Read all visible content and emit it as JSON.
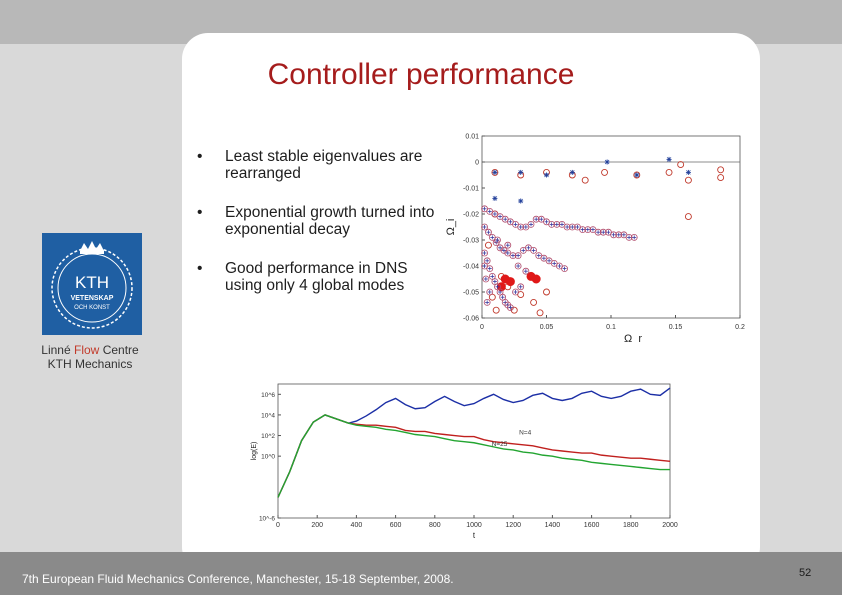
{
  "slide": {
    "title": "Controller performance",
    "bullet_marker": "•",
    "bullets": [
      "Least stable eigenvalues are rearranged",
      "Exponential growth turned into exponential decay",
      "Good performance in DNS using only 4 global modes"
    ],
    "logo": {
      "text_kth": "KTH",
      "text_line1": "VETENSKAP",
      "text_line2": "OCH KONST"
    },
    "caption": {
      "line1_a": "Linné",
      "line1_flow": "Flow",
      "line1_b": "Centre",
      "line2": "KTH Mechanics"
    },
    "footer": "7th European Fluid Mechanics Conference, Manchester, 15-18 September, 2008.",
    "page_number": "52",
    "colors": {
      "title": "#a51c1c",
      "top_bar": "#b8b8b8",
      "side_panel": "#d9d9d9",
      "bottom_bar": "#8a8a8a",
      "logo_bg": "#1f5fa3"
    }
  },
  "chart_data": [
    {
      "type": "scatter",
      "title": "",
      "xlabel": "Ω_r",
      "ylabel": "Ω_i",
      "xlim": [
        0,
        0.2
      ],
      "ylim": [
        -0.06,
        0.01
      ],
      "x_ticks": [
        "0",
        "0.05",
        "0.1",
        "0.15",
        "0.2"
      ],
      "y_ticks": [
        "0.01",
        "0",
        "-0.01",
        "-0.02",
        "-0.03",
        "-0.04",
        "-0.05",
        "-0.06"
      ],
      "series": [
        {
          "marker": "circle",
          "color": "#c0392b",
          "points": [
            [
              0.01,
              -0.004
            ],
            [
              0.03,
              -0.005
            ],
            [
              0.05,
              -0.004
            ],
            [
              0.07,
              -0.005
            ],
            [
              0.095,
              -0.004
            ],
            [
              0.12,
              -0.005
            ],
            [
              0.145,
              -0.004
            ],
            [
              0.16,
              -0.007
            ],
            [
              0.185,
              -0.006
            ],
            [
              0.02,
              -0.048
            ],
            [
              0.03,
              -0.051
            ],
            [
              0.04,
              -0.054
            ],
            [
              0.045,
              -0.058
            ],
            [
              0.05,
              -0.05
            ],
            [
              0.025,
              -0.057
            ],
            [
              0.01,
              -0.02
            ],
            [
              0.005,
              -0.032
            ],
            [
              0.015,
              -0.044
            ],
            [
              0.008,
              -0.052
            ],
            [
              0.154,
              -0.001
            ],
            [
              0.185,
              -0.003
            ],
            [
              0.16,
              -0.021
            ],
            [
              0.08,
              -0.007
            ],
            [
              0.011,
              -0.057
            ]
          ]
        },
        {
          "marker": "cross",
          "color": "#1f3d99",
          "points": [
            [
              0.097,
              0
            ],
            [
              0.145,
              0.001
            ],
            [
              0.01,
              -0.004
            ],
            [
              0.03,
              -0.004
            ],
            [
              0.05,
              -0.005
            ],
            [
              0.07,
              -0.004
            ],
            [
              0.12,
              -0.005
            ],
            [
              0.16,
              -0.004
            ],
            [
              0.01,
              -0.014
            ],
            [
              0.03,
              -0.015
            ]
          ]
        },
        {
          "marker": "circle-filled",
          "color": "#e01818",
          "points": [
            [
              0.018,
              -0.045
            ],
            [
              0.022,
              -0.046
            ],
            [
              0.038,
              -0.044
            ],
            [
              0.042,
              -0.045
            ],
            [
              0.015,
              -0.048
            ]
          ]
        },
        {
          "marker": "circle-cross",
          "color": "#7a5aa8",
          "points": [
            [
              0.002,
              -0.018
            ],
            [
              0.006,
              -0.019
            ],
            [
              0.01,
              -0.02
            ],
            [
              0.014,
              -0.021
            ],
            [
              0.018,
              -0.022
            ],
            [
              0.022,
              -0.023
            ],
            [
              0.026,
              -0.024
            ],
            [
              0.03,
              -0.025
            ],
            [
              0.034,
              -0.025
            ],
            [
              0.038,
              -0.024
            ],
            [
              0.042,
              -0.022
            ],
            [
              0.046,
              -0.022
            ],
            [
              0.05,
              -0.023
            ],
            [
              0.054,
              -0.024
            ],
            [
              0.058,
              -0.024
            ],
            [
              0.062,
              -0.024
            ],
            [
              0.066,
              -0.025
            ],
            [
              0.07,
              -0.025
            ],
            [
              0.074,
              -0.025
            ],
            [
              0.078,
              -0.026
            ],
            [
              0.082,
              -0.026
            ],
            [
              0.086,
              -0.026
            ],
            [
              0.09,
              -0.027
            ],
            [
              0.094,
              -0.027
            ],
            [
              0.098,
              -0.027
            ],
            [
              0.102,
              -0.028
            ],
            [
              0.106,
              -0.028
            ],
            [
              0.11,
              -0.028
            ],
            [
              0.114,
              -0.029
            ],
            [
              0.118,
              -0.029
            ],
            [
              0.002,
              -0.025
            ],
            [
              0.005,
              -0.027
            ],
            [
              0.008,
              -0.029
            ],
            [
              0.011,
              -0.031
            ],
            [
              0.014,
              -0.033
            ],
            [
              0.017,
              -0.034
            ],
            [
              0.02,
              -0.035
            ],
            [
              0.024,
              -0.036
            ],
            [
              0.028,
              -0.036
            ],
            [
              0.032,
              -0.034
            ],
            [
              0.036,
              -0.033
            ],
            [
              0.04,
              -0.034
            ],
            [
              0.044,
              -0.036
            ],
            [
              0.048,
              -0.037
            ],
            [
              0.052,
              -0.038
            ],
            [
              0.056,
              -0.039
            ],
            [
              0.06,
              -0.04
            ],
            [
              0.064,
              -0.041
            ],
            [
              0.002,
              -0.035
            ],
            [
              0.004,
              -0.038
            ],
            [
              0.006,
              -0.041
            ],
            [
              0.008,
              -0.044
            ],
            [
              0.01,
              -0.046
            ],
            [
              0.012,
              -0.048
            ],
            [
              0.014,
              -0.05
            ],
            [
              0.016,
              -0.052
            ],
            [
              0.018,
              -0.054
            ],
            [
              0.02,
              -0.055
            ],
            [
              0.022,
              -0.056
            ],
            [
              0.012,
              -0.03
            ],
            [
              0.02,
              -0.032
            ],
            [
              0.028,
              -0.04
            ],
            [
              0.034,
              -0.042
            ],
            [
              0.03,
              -0.048
            ],
            [
              0.026,
              -0.05
            ],
            [
              0.006,
              -0.05
            ],
            [
              0.004,
              -0.054
            ],
            [
              0.003,
              -0.045
            ],
            [
              0.002,
              -0.04
            ]
          ]
        }
      ]
    },
    {
      "type": "line",
      "title": "",
      "xlabel": "t",
      "ylabel": "log(E)",
      "xlim": [
        0,
        2000
      ],
      "ylim": [
        -6,
        7
      ],
      "x_ticks": [
        "0",
        "200",
        "400",
        "600",
        "800",
        "1000",
        "1200",
        "1400",
        "1600",
        "1800",
        "2000"
      ],
      "y_ticks": [
        "10^6",
        "10^4",
        "10^2",
        "10^0",
        "10^-6"
      ],
      "annotations": [
        "N=4",
        "N=25"
      ],
      "series": [
        {
          "color": "#1c2fa6",
          "x": [
            0,
            60,
            120,
            180,
            240,
            300,
            360,
            400,
            450,
            500,
            550,
            600,
            650,
            700,
            750,
            800,
            850,
            900,
            950,
            1000,
            1050,
            1100,
            1150,
            1200,
            1250,
            1300,
            1350,
            1400,
            1450,
            1500,
            1550,
            1600,
            1650,
            1700,
            1750,
            1800,
            1850,
            1900,
            1950,
            2000
          ],
          "y": [
            -4,
            -1.5,
            1.5,
            3.3,
            4.0,
            3.6,
            3.2,
            3.4,
            3.9,
            4.5,
            5.2,
            5.6,
            5.0,
            4.6,
            4.7,
            5.3,
            5.8,
            5.3,
            4.9,
            5.1,
            5.6,
            6.0,
            5.5,
            5.2,
            5.4,
            5.9,
            6.1,
            5.6,
            5.4,
            5.6,
            6.1,
            6.3,
            5.8,
            5.6,
            5.8,
            6.3,
            6.5,
            6.0,
            5.9,
            6.6
          ]
        },
        {
          "color": "#c0201e",
          "x": [
            0,
            60,
            120,
            180,
            240,
            300,
            360,
            400,
            450,
            500,
            550,
            600,
            650,
            700,
            750,
            800,
            850,
            900,
            950,
            1000,
            1050,
            1100,
            1150,
            1200,
            1250,
            1300,
            1350,
            1400,
            1450,
            1500,
            1550,
            1600,
            1650,
            1700,
            1750,
            1800,
            1850,
            1900,
            1950,
            2000
          ],
          "y": [
            -4,
            -1.5,
            1.5,
            3.3,
            4.0,
            3.6,
            3.2,
            3.1,
            3.0,
            3.0,
            2.9,
            2.8,
            2.5,
            2.4,
            2.4,
            2.2,
            2.1,
            2.0,
            1.9,
            1.9,
            1.6,
            1.4,
            1.3,
            1.2,
            1.1,
            1.0,
            0.8,
            0.6,
            0.5,
            0.4,
            0.3,
            0.3,
            0.1,
            0.0,
            -0.1,
            -0.2,
            -0.2,
            -0.3,
            -0.4,
            -0.5
          ]
        },
        {
          "color": "#23a531",
          "x": [
            0,
            60,
            120,
            180,
            240,
            300,
            360,
            400,
            450,
            500,
            550,
            600,
            650,
            700,
            750,
            800,
            850,
            900,
            950,
            1000,
            1050,
            1100,
            1150,
            1200,
            1250,
            1300,
            1350,
            1400,
            1450,
            1500,
            1550,
            1600,
            1650,
            1700,
            1750,
            1800,
            1850,
            1900,
            1950,
            2000
          ],
          "y": [
            -4,
            -1.5,
            1.5,
            3.3,
            4.0,
            3.6,
            3.2,
            3.0,
            2.9,
            2.8,
            2.6,
            2.5,
            2.3,
            2.1,
            2.0,
            1.9,
            1.7,
            1.5,
            1.4,
            1.3,
            1.1,
            0.9,
            0.7,
            0.6,
            0.4,
            0.3,
            0.1,
            0.0,
            -0.2,
            -0.3,
            -0.4,
            -0.6,
            -0.7,
            -0.8,
            -0.9,
            -1.0,
            -1.1,
            -1.2,
            -1.3,
            -1.3
          ]
        }
      ]
    }
  ]
}
